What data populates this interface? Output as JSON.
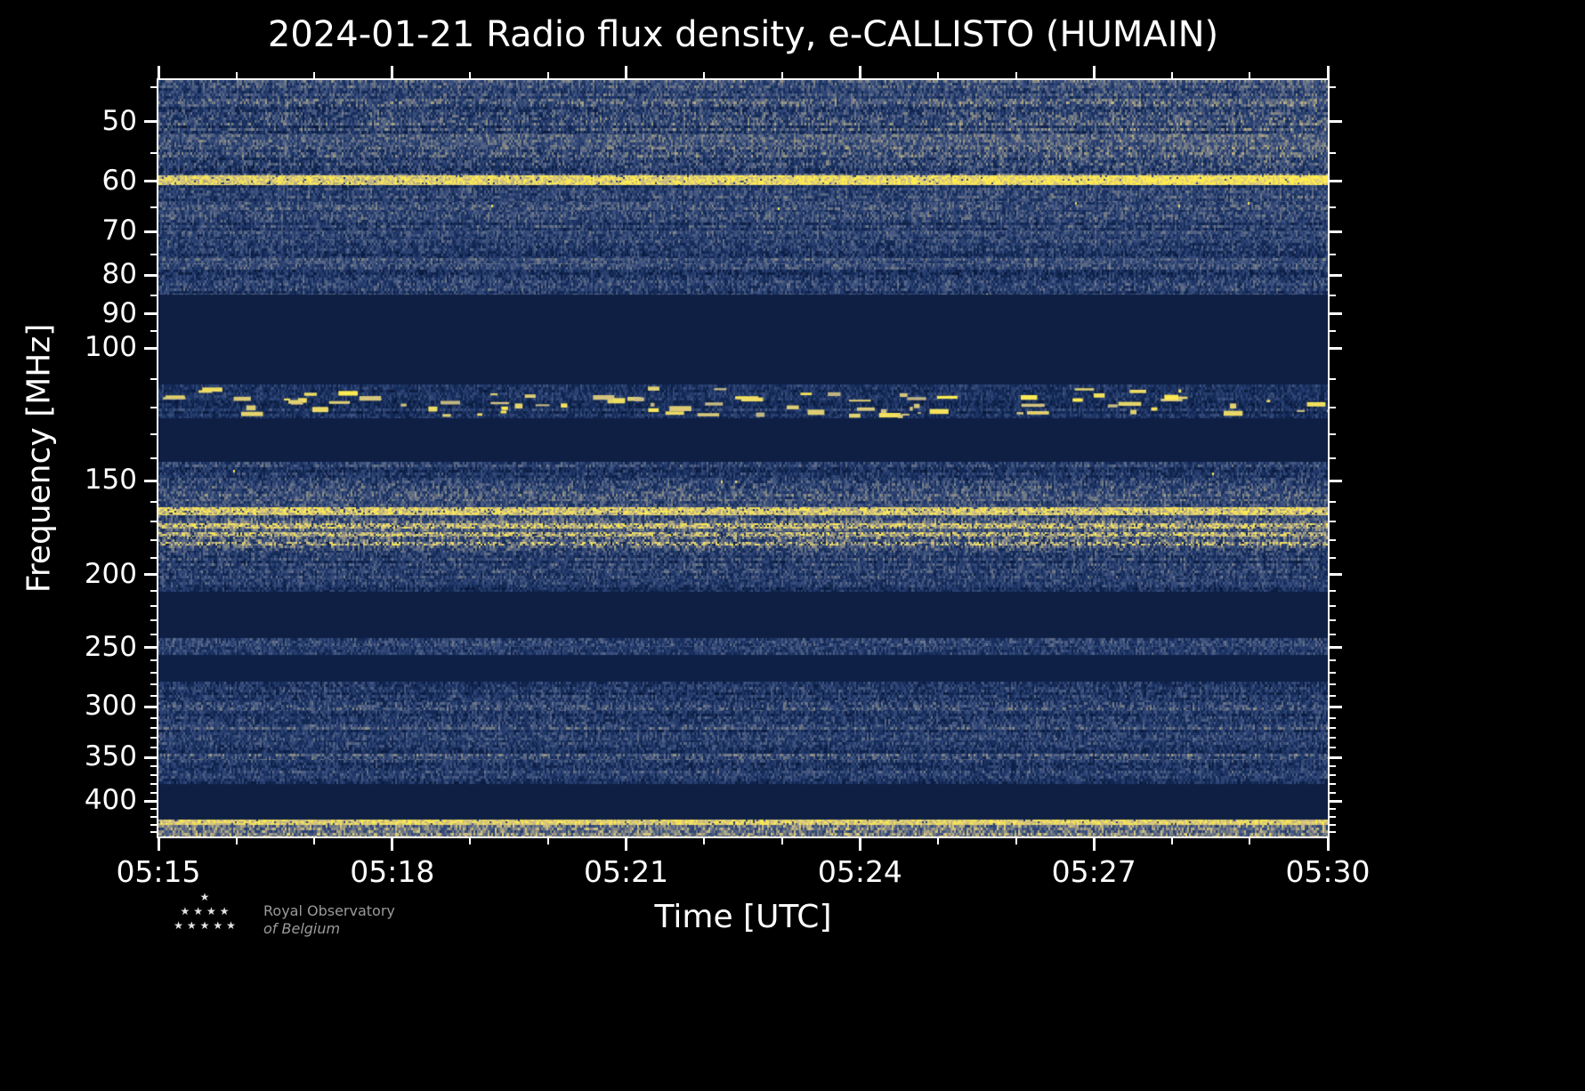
{
  "page": {
    "background": "#000000",
    "foreground": "#ffffff"
  },
  "chart_data": {
    "type": "heatmap",
    "subtype": "radio-spectrogram",
    "title": "2024-01-21 Radio flux density, e-CALLISTO (HUMAIN)",
    "date": "2024-01-21",
    "instrument": "e-CALLISTO",
    "station": "HUMAIN",
    "xlabel": "Time [UTC]",
    "ylabel": "Frequency [MHz]",
    "x_ticks": [
      "05:15",
      "05:18",
      "05:21",
      "05:24",
      "05:27",
      "05:30"
    ],
    "x_minor_offsets_min": [
      1,
      2,
      4,
      5,
      7,
      8,
      10,
      11,
      13,
      14
    ],
    "x_span_min": 15,
    "time_range": [
      "05:15",
      "05:30"
    ],
    "y_major_ticks": [
      50,
      60,
      70,
      80,
      90,
      100,
      150,
      200,
      250,
      300,
      350,
      400
    ],
    "y_minor_ticks": [
      45,
      55,
      65,
      75,
      85,
      95,
      110,
      120,
      130,
      140,
      160,
      170,
      180,
      190,
      210,
      220,
      230,
      240,
      260,
      270,
      280,
      290,
      310,
      320,
      330,
      340,
      360,
      370,
      380,
      390,
      410,
      420,
      430,
      440
    ],
    "freq_range_mhz": [
      44,
      446
    ],
    "y_scale": "log",
    "y_axis_inverted_low_freq_top": true,
    "grid": false,
    "legend": "none",
    "colormap_stops": [
      [
        0.0,
        "#0a1838"
      ],
      [
        0.22,
        "#152d5c"
      ],
      [
        0.42,
        "#33497a"
      ],
      [
        0.58,
        "#5f6c86"
      ],
      [
        0.72,
        "#969482"
      ],
      [
        0.84,
        "#d0c082"
      ],
      [
        1.0,
        "#ffec50"
      ]
    ],
    "bands": [
      {
        "f0": 44,
        "f1": 47,
        "style": "noise",
        "level": 0.4,
        "rowVar": 0.09,
        "colVar": 0.22,
        "streak": 0.12,
        "ramp": 0.05
      },
      {
        "f0": 47,
        "f1": 52,
        "style": "noise",
        "level": 0.35,
        "rowVar": 0.11,
        "colVar": 0.26,
        "streak": 0.14,
        "ramp": 0.1
      },
      {
        "f0": 52,
        "f1": 54,
        "style": "noise",
        "level": 0.46,
        "rowVar": 0.05,
        "colVar": 0.2,
        "streak": 0.1,
        "ramp": 0.08
      },
      {
        "f0": 54,
        "f1": 59,
        "style": "noise",
        "level": 0.34,
        "rowVar": 0.1,
        "colVar": 0.26,
        "streak": 0.12,
        "ramp": 0.1
      },
      {
        "f0": 59,
        "f1": 60.7,
        "style": "line",
        "level": 0.88,
        "var": 0.14,
        "dashProb": 0.04,
        "ramp": 0.1
      },
      {
        "f0": 60.7,
        "f1": 64,
        "style": "noise",
        "level": 0.33,
        "rowVar": 0.1,
        "colVar": 0.22,
        "streak": 0.12,
        "ramp": 0.06
      },
      {
        "f0": 64,
        "f1": 66,
        "style": "noise",
        "level": 0.42,
        "rowVar": 0.07,
        "colVar": 0.22,
        "streak": 0.1,
        "sparkProb": 0.0008
      },
      {
        "f0": 66,
        "f1": 70,
        "style": "noise",
        "level": 0.34,
        "rowVar": 0.1,
        "colVar": 0.22,
        "streak": 0.12
      },
      {
        "f0": 70,
        "f1": 72,
        "style": "noise",
        "level": 0.4,
        "rowVar": 0.07,
        "colVar": 0.2,
        "streak": 0.1
      },
      {
        "f0": 72,
        "f1": 76,
        "style": "noise",
        "level": 0.33,
        "rowVar": 0.1,
        "colVar": 0.22,
        "streak": 0.12
      },
      {
        "f0": 76,
        "f1": 77.5,
        "style": "noise",
        "level": 0.45,
        "rowVar": 0.05,
        "colVar": 0.2,
        "streak": 0.1
      },
      {
        "f0": 77.5,
        "f1": 85,
        "style": "noise",
        "level": 0.31,
        "rowVar": 0.1,
        "colVar": 0.22,
        "streak": 0.12,
        "sparkProb": 0.0004
      },
      {
        "f0": 85,
        "f1": 112,
        "style": "flat",
        "level": 0.07
      },
      {
        "f0": 112,
        "f1": 124,
        "style": "blobs",
        "level": 0.25,
        "rowVar": 0.09,
        "colVar": 0.18,
        "streak": 0.1,
        "blobs": 85,
        "blobLevel": 0.9
      },
      {
        "f0": 124,
        "f1": 142,
        "style": "flat",
        "level": 0.07
      },
      {
        "f0": 142,
        "f1": 149,
        "style": "noise",
        "level": 0.31,
        "rowVar": 0.1,
        "colVar": 0.22,
        "streak": 0.12,
        "sparkProb": 0.0012
      },
      {
        "f0": 149,
        "f1": 155,
        "style": "noise",
        "level": 0.38,
        "rowVar": 0.08,
        "colVar": 0.24,
        "streak": 0.12,
        "sparkProb": 0.0008
      },
      {
        "f0": 155,
        "f1": 160,
        "style": "noise",
        "level": 0.46,
        "rowVar": 0.07,
        "colVar": 0.24,
        "streak": 0.1
      },
      {
        "f0": 160,
        "f1": 163,
        "style": "noise",
        "level": 0.4,
        "rowVar": 0.07,
        "colVar": 0.22,
        "streak": 0.1
      },
      {
        "f0": 163,
        "f1": 167,
        "style": "line",
        "level": 0.88,
        "var": 0.16,
        "dashProb": 0.08
      },
      {
        "f0": 167,
        "f1": 171,
        "style": "noise",
        "level": 0.44,
        "rowVar": 0.09,
        "colVar": 0.26,
        "streak": 0.12
      },
      {
        "f0": 171,
        "f1": 174,
        "style": "line",
        "level": 0.82,
        "var": 0.22,
        "dashProb": 0.14
      },
      {
        "f0": 174,
        "f1": 176,
        "style": "noise",
        "level": 0.5,
        "rowVar": 0.07,
        "colVar": 0.26,
        "streak": 0.1
      },
      {
        "f0": 176,
        "f1": 178.5,
        "style": "line",
        "level": 0.8,
        "var": 0.22,
        "dashProb": 0.18
      },
      {
        "f0": 178.5,
        "f1": 181,
        "style": "noise",
        "level": 0.52,
        "rowVar": 0.09,
        "colVar": 0.3,
        "streak": 0.12
      },
      {
        "f0": 181,
        "f1": 183,
        "style": "line",
        "level": 0.76,
        "var": 0.26,
        "dashProb": 0.28
      },
      {
        "f0": 183,
        "f1": 187,
        "style": "noise",
        "level": 0.42,
        "rowVar": 0.09,
        "colVar": 0.26,
        "streak": 0.12
      },
      {
        "f0": 187,
        "f1": 198,
        "style": "noise",
        "level": 0.31,
        "rowVar": 0.1,
        "colVar": 0.22,
        "streak": 0.14
      },
      {
        "f0": 198,
        "f1": 203,
        "style": "noise",
        "level": 0.36,
        "rowVar": 0.07,
        "colVar": 0.22,
        "streak": 0.12
      },
      {
        "f0": 203,
        "f1": 211,
        "style": "noise",
        "level": 0.29,
        "rowVar": 0.09,
        "colVar": 0.2,
        "streak": 0.12
      },
      {
        "f0": 211,
        "f1": 243,
        "style": "flat",
        "level": 0.07
      },
      {
        "f0": 243,
        "f1": 250,
        "style": "noise",
        "level": 0.34,
        "rowVar": 0.08,
        "colVar": 0.22,
        "streak": 0.12
      },
      {
        "f0": 250,
        "f1": 256,
        "style": "noise",
        "level": 0.29,
        "rowVar": 0.07,
        "colVar": 0.2,
        "streak": 0.1
      },
      {
        "f0": 256,
        "f1": 278,
        "style": "flat",
        "level": 0.08
      },
      {
        "f0": 278,
        "f1": 296,
        "style": "noise",
        "level": 0.31,
        "rowVar": 0.09,
        "colVar": 0.22,
        "streak": 0.12
      },
      {
        "f0": 296,
        "f1": 304,
        "style": "noise",
        "level": 0.42,
        "rowVar": 0.07,
        "colVar": 0.24,
        "streak": 0.1
      },
      {
        "f0": 304,
        "f1": 317,
        "style": "noise",
        "level": 0.31,
        "rowVar": 0.09,
        "colVar": 0.22,
        "streak": 0.12
      },
      {
        "f0": 317,
        "f1": 322,
        "style": "noise",
        "level": 0.42,
        "rowVar": 0.06,
        "colVar": 0.22,
        "streak": 0.1
      },
      {
        "f0": 322,
        "f1": 335,
        "style": "noise",
        "level": 0.3,
        "rowVar": 0.09,
        "colVar": 0.2,
        "streak": 0.12
      },
      {
        "f0": 335,
        "f1": 340,
        "style": "noise",
        "level": 0.37,
        "rowVar": 0.07,
        "colVar": 0.22,
        "streak": 0.1
      },
      {
        "f0": 340,
        "f1": 347,
        "style": "noise",
        "level": 0.3,
        "rowVar": 0.08,
        "colVar": 0.2,
        "streak": 0.12
      },
      {
        "f0": 347,
        "f1": 353,
        "style": "noise",
        "level": 0.43,
        "rowVar": 0.06,
        "colVar": 0.24,
        "streak": 0.1
      },
      {
        "f0": 353,
        "f1": 368,
        "style": "noise",
        "level": 0.3,
        "rowVar": 0.09,
        "colVar": 0.22,
        "streak": 0.12
      },
      {
        "f0": 368,
        "f1": 374,
        "style": "noise",
        "level": 0.37,
        "rowVar": 0.07,
        "colVar": 0.2,
        "streak": 0.1
      },
      {
        "f0": 374,
        "f1": 380,
        "style": "noise",
        "level": 0.31,
        "rowVar": 0.08,
        "colVar": 0.2,
        "streak": 0.12
      },
      {
        "f0": 380,
        "f1": 424,
        "style": "flat",
        "level": 0.07
      },
      {
        "f0": 424,
        "f1": 431,
        "style": "line",
        "level": 0.9,
        "var": 0.12,
        "dashProb": 0.04
      },
      {
        "f0": 431,
        "f1": 446,
        "style": "noise",
        "level": 0.62,
        "rowVar": 0.07,
        "colVar": 0.26,
        "streak": 0.1
      }
    ]
  },
  "footer": {
    "credit_line1": "Royal Observatory",
    "credit_line2": "of Belgium"
  }
}
